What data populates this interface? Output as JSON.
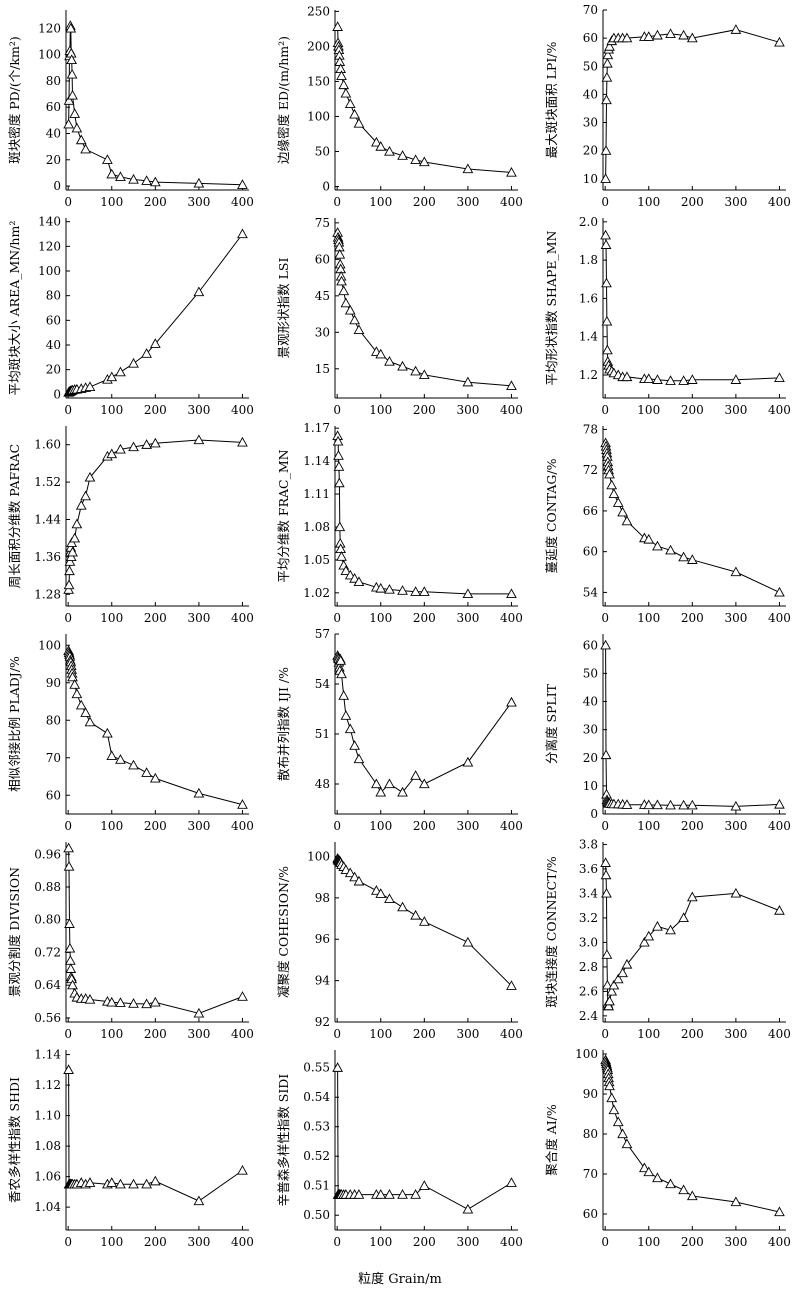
{
  "figure": {
    "xlabel": "粒度 Grain/m"
  },
  "chart_data": [
    {
      "type": "line",
      "ylabel": "斑块密度 PD/(个/km²)",
      "xlim": [
        -5,
        415
      ],
      "ylim": [
        -3,
        134
      ],
      "xticks": [
        0,
        100,
        200,
        300,
        400
      ],
      "yticks": [
        0,
        20,
        40,
        60,
        80,
        100,
        120
      ],
      "x": [
        1,
        2,
        3,
        4,
        5,
        6,
        7,
        8,
        9,
        10,
        15,
        20,
        30,
        40,
        90,
        100,
        120,
        150,
        180,
        200,
        300,
        400
      ],
      "y": [
        47,
        65,
        99,
        103,
        122,
        120,
        101,
        96,
        85,
        69,
        55,
        44,
        35,
        28,
        20,
        9,
        7,
        5,
        4,
        3,
        2,
        1
      ]
    },
    {
      "type": "line",
      "ylabel": "边缘密度 ED/(m/hm²)",
      "xlim": [
        -5,
        415
      ],
      "ylim": [
        -5,
        252
      ],
      "xticks": [
        0,
        100,
        200,
        300,
        400
      ],
      "yticks": [
        0,
        50,
        100,
        150,
        200,
        250
      ],
      "x": [
        1,
        2,
        3,
        4,
        5,
        6,
        8,
        10,
        15,
        20,
        30,
        40,
        50,
        90,
        100,
        120,
        150,
        180,
        200,
        300,
        400
      ],
      "y": [
        228,
        205,
        200,
        195,
        187,
        178,
        168,
        158,
        145,
        133,
        118,
        103,
        90,
        63,
        57,
        50,
        44,
        38,
        35,
        25,
        20
      ]
    },
    {
      "type": "line",
      "ylabel": "最大斑块面积 LPI/%",
      "xlim": [
        -5,
        415
      ],
      "ylim": [
        6,
        70
      ],
      "xticks": [
        0,
        100,
        200,
        300,
        400
      ],
      "yticks": [
        10,
        20,
        30,
        40,
        50,
        60,
        70
      ],
      "x": [
        1,
        2,
        3,
        4,
        5,
        6,
        8,
        10,
        15,
        20,
        30,
        40,
        50,
        90,
        100,
        120,
        150,
        180,
        200,
        300,
        400
      ],
      "y": [
        10,
        20,
        38,
        46,
        51,
        54,
        56,
        57,
        59,
        60,
        60,
        60,
        60,
        60.5,
        60.5,
        61,
        61.5,
        61,
        60,
        63,
        58.5
      ]
    },
    {
      "type": "line",
      "ylabel": "平均斑块大小 AREA_MN/hm²",
      "xlim": [
        -5,
        415
      ],
      "ylim": [
        -3,
        143
      ],
      "xticks": [
        0,
        100,
        200,
        300,
        400
      ],
      "yticks": [
        0,
        20,
        40,
        60,
        80,
        100,
        120,
        140
      ],
      "x": [
        1,
        2,
        3,
        4,
        5,
        6,
        8,
        10,
        15,
        20,
        30,
        40,
        50,
        90,
        100,
        120,
        150,
        180,
        200,
        300,
        400
      ],
      "y": [
        1.5,
        1.8,
        2.0,
        2.2,
        2.5,
        2.7,
        3.0,
        3.3,
        3.8,
        4.0,
        4.5,
        5.3,
        6.0,
        12,
        14,
        18,
        25,
        33,
        41,
        83,
        130
      ]
    },
    {
      "type": "line",
      "ylabel": "景观形状指数 LSI",
      "xlim": [
        -5,
        415
      ],
      "ylim": [
        3,
        77
      ],
      "xticks": [
        0,
        100,
        200,
        300,
        400
      ],
      "yticks": [
        15,
        30,
        45,
        60,
        75
      ],
      "x": [
        1,
        2,
        3,
        4,
        5,
        6,
        7,
        8,
        9,
        10,
        15,
        20,
        30,
        40,
        50,
        90,
        100,
        120,
        150,
        180,
        200,
        300,
        400
      ],
      "y": [
        71,
        69,
        68,
        67,
        65,
        62,
        58,
        56,
        53,
        51,
        47,
        42,
        39,
        35,
        31,
        22,
        21,
        18,
        16,
        14,
        12.5,
        9.5,
        8
      ]
    },
    {
      "type": "line",
      "ylabel": "平均形状指数 SHAPE_MN",
      "xlim": [
        -5,
        415
      ],
      "ylim": [
        1.08,
        2.02
      ],
      "xticks": [
        0,
        100,
        200,
        300,
        400
      ],
      "yticks": [
        1.2,
        1.4,
        1.6,
        1.8,
        2.0
      ],
      "x": [
        1,
        2,
        3,
        4,
        5,
        6,
        8,
        10,
        15,
        20,
        30,
        40,
        50,
        90,
        100,
        120,
        150,
        180,
        200,
        300,
        400
      ],
      "y": [
        1.93,
        1.88,
        1.68,
        1.48,
        1.33,
        1.27,
        1.25,
        1.23,
        1.22,
        1.21,
        1.2,
        1.19,
        1.19,
        1.18,
        1.18,
        1.175,
        1.17,
        1.17,
        1.175,
        1.175,
        1.185
      ]
    },
    {
      "type": "line",
      "ylabel": "周长面积分维数 PAFRAC",
      "xlim": [
        -5,
        415
      ],
      "ylim": [
        1.255,
        1.64
      ],
      "xticks": [
        0,
        100,
        200,
        300,
        400
      ],
      "yticks": [
        1.28,
        1.36,
        1.44,
        1.52,
        1.6
      ],
      "x": [
        1,
        2,
        3,
        4,
        5,
        6,
        7,
        8,
        10,
        15,
        20,
        30,
        40,
        50,
        90,
        100,
        120,
        150,
        180,
        200,
        300,
        400
      ],
      "y": [
        1.29,
        1.3,
        1.33,
        1.35,
        1.37,
        1.38,
        1.36,
        1.39,
        1.37,
        1.4,
        1.43,
        1.47,
        1.49,
        1.53,
        1.575,
        1.58,
        1.59,
        1.595,
        1.6,
        1.603,
        1.61,
        1.605
      ]
    },
    {
      "type": "line",
      "ylabel": "平均分维数 FRAC_MN",
      "xlim": [
        -5,
        415
      ],
      "ylim": [
        1.008,
        1.172
      ],
      "xticks": [
        0,
        100,
        200,
        300,
        400
      ],
      "yticks": [
        1.02,
        1.05,
        1.08,
        1.11,
        1.14,
        1.17
      ],
      "x": [
        1,
        2,
        3,
        4,
        5,
        6,
        7,
        8,
        10,
        15,
        20,
        30,
        40,
        50,
        90,
        100,
        120,
        150,
        180,
        200,
        300,
        400
      ],
      "y": [
        1.163,
        1.158,
        1.145,
        1.135,
        1.12,
        1.08,
        1.065,
        1.06,
        1.053,
        1.045,
        1.04,
        1.036,
        1.033,
        1.03,
        1.025,
        1.024,
        1.023,
        1.022,
        1.021,
        1.021,
        1.019,
        1.019
      ]
    },
    {
      "type": "line",
      "ylabel": "蔓延度 CONTAG/%",
      "xlim": [
        -5,
        415
      ],
      "ylim": [
        52,
        78.5
      ],
      "xticks": [
        0,
        100,
        200,
        300,
        400
      ],
      "yticks": [
        54,
        60,
        66,
        72,
        78
      ],
      "x": [
        1,
        2,
        3,
        4,
        5,
        6,
        7,
        8,
        10,
        15,
        20,
        30,
        40,
        50,
        90,
        100,
        120,
        150,
        180,
        200,
        300,
        400
      ],
      "y": [
        76,
        75.5,
        75,
        74.5,
        74,
        73.2,
        72.6,
        72,
        71.4,
        69.8,
        68.5,
        67.2,
        65.8,
        64.5,
        62,
        61.8,
        60.8,
        60.2,
        59.2,
        58.8,
        57,
        54
      ]
    },
    {
      "type": "line",
      "ylabel": "相似邻接比例 PLADJ/%",
      "xlim": [
        -5,
        415
      ],
      "ylim": [
        55,
        103
      ],
      "xticks": [
        0,
        100,
        200,
        300,
        400
      ],
      "yticks": [
        60,
        70,
        80,
        90,
        100
      ],
      "x": [
        1,
        2,
        3,
        4,
        5,
        6,
        7,
        8,
        9,
        10,
        15,
        20,
        30,
        40,
        50,
        90,
        100,
        120,
        150,
        180,
        200,
        300,
        400
      ],
      "y": [
        98.5,
        98,
        97.5,
        97,
        96,
        95.5,
        94.5,
        93.5,
        92.5,
        91.5,
        89.5,
        87,
        84,
        82,
        79.5,
        76.5,
        70.5,
        69.5,
        68,
        66,
        64.5,
        60.5,
        57.5
      ]
    },
    {
      "type": "line",
      "ylabel": "散布并列指数 IJI /%",
      "xlim": [
        -5,
        415
      ],
      "ylim": [
        46.2,
        57
      ],
      "xticks": [
        0,
        100,
        200,
        300,
        400
      ],
      "yticks": [
        48,
        51,
        54,
        57
      ],
      "x": [
        1,
        2,
        3,
        4,
        5,
        6,
        7,
        8,
        10,
        15,
        20,
        30,
        40,
        50,
        90,
        100,
        120,
        150,
        180,
        200,
        300,
        400
      ],
      "y": [
        55.7,
        55.6,
        55.5,
        55.3,
        55.0,
        54.8,
        55.5,
        55.4,
        54.6,
        53.3,
        52.1,
        51.3,
        50.3,
        49.5,
        48.0,
        47.5,
        48.0,
        47.5,
        48.5,
        48.0,
        49.3,
        52.9
      ]
    },
    {
      "type": "line",
      "ylabel": "分离度 SPLIT",
      "xlim": [
        -5,
        415
      ],
      "ylim": [
        0,
        64
      ],
      "xticks": [
        0,
        100,
        200,
        300,
        400
      ],
      "yticks": [
        0,
        10,
        20,
        30,
        40,
        50,
        60
      ],
      "x": [
        1,
        2,
        3,
        4,
        5,
        6,
        8,
        10,
        15,
        20,
        30,
        40,
        50,
        90,
        100,
        120,
        150,
        180,
        200,
        300,
        400
      ],
      "y": [
        60,
        21,
        7,
        5,
        4.5,
        4,
        3.8,
        3.7,
        3.6,
        3.5,
        3.5,
        3.4,
        3.3,
        3.3,
        3.2,
        3.2,
        3.1,
        3.1,
        3.1,
        2.7,
        3.4
      ]
    },
    {
      "type": "line",
      "ylabel": "景观分割度 DIVISION",
      "xlim": [
        -5,
        415
      ],
      "ylim": [
        0.55,
        0.99
      ],
      "xticks": [
        0,
        100,
        200,
        300,
        400
      ],
      "yticks": [
        0.56,
        0.64,
        0.72,
        0.8,
        0.88,
        0.96
      ],
      "x": [
        1,
        2,
        3,
        4,
        5,
        6,
        7,
        8,
        10,
        15,
        20,
        30,
        40,
        50,
        90,
        100,
        120,
        150,
        180,
        200,
        300,
        400
      ],
      "y": [
        0.975,
        0.93,
        0.79,
        0.73,
        0.7,
        0.68,
        0.66,
        0.655,
        0.64,
        0.62,
        0.61,
        0.607,
        0.607,
        0.605,
        0.6,
        0.598,
        0.597,
        0.595,
        0.594,
        0.598,
        0.571,
        0.612
      ]
    },
    {
      "type": "line",
      "ylabel": "凝聚度 COHESION/%",
      "xlim": [
        -5,
        415
      ],
      "ylim": [
        92,
        100.7
      ],
      "xticks": [
        0,
        100,
        200,
        300,
        400
      ],
      "yticks": [
        92,
        94,
        96,
        98,
        100
      ],
      "x": [
        1,
        2,
        3,
        4,
        5,
        6,
        7,
        8,
        10,
        15,
        20,
        30,
        40,
        50,
        90,
        100,
        120,
        150,
        180,
        200,
        300,
        400
      ],
      "y": [
        99.9,
        99.85,
        99.8,
        99.8,
        99.8,
        99.75,
        99.75,
        99.7,
        99.6,
        99.5,
        99.35,
        99.2,
        99.0,
        98.8,
        98.35,
        98.2,
        97.95,
        97.55,
        97.15,
        96.85,
        95.85,
        93.75
      ]
    },
    {
      "type": "line",
      "ylabel": "斑块连接度 CONNECT/%",
      "xlim": [
        -5,
        415
      ],
      "ylim": [
        2.35,
        3.82
      ],
      "xticks": [
        0,
        100,
        200,
        300,
        400
      ],
      "yticks": [
        2.4,
        2.6,
        2.8,
        3.0,
        3.2,
        3.4,
        3.6,
        3.8
      ],
      "x": [
        1,
        2,
        3,
        4,
        5,
        6,
        7,
        8,
        10,
        15,
        20,
        30,
        40,
        50,
        90,
        100,
        120,
        150,
        180,
        200,
        300,
        400
      ],
      "y": [
        3.65,
        3.55,
        3.4,
        2.9,
        2.65,
        2.5,
        2.48,
        2.48,
        2.52,
        2.6,
        2.65,
        2.7,
        2.75,
        2.82,
        3.0,
        3.05,
        3.13,
        3.1,
        3.2,
        3.37,
        3.4,
        3.26
      ]
    },
    {
      "type": "line",
      "ylabel": "香农多样性指数 SHDI",
      "xlim": [
        -5,
        415
      ],
      "ylim": [
        1.025,
        1.143
      ],
      "xticks": [
        0,
        100,
        200,
        300,
        400
      ],
      "yticks": [
        1.04,
        1.06,
        1.08,
        1.1,
        1.12,
        1.14
      ],
      "x": [
        1,
        2,
        3,
        4,
        5,
        6,
        8,
        10,
        15,
        20,
        30,
        40,
        50,
        90,
        100,
        120,
        150,
        180,
        200,
        300,
        400
      ],
      "y": [
        1.13,
        1.055,
        1.055,
        1.055,
        1.055,
        1.055,
        1.055,
        1.055,
        1.055,
        1.055,
        1.056,
        1.055,
        1.056,
        1.055,
        1.056,
        1.055,
        1.055,
        1.055,
        1.057,
        1.044,
        1.064
      ]
    },
    {
      "type": "line",
      "ylabel": "辛普森多样性指数 SIDI",
      "xlim": [
        -5,
        415
      ],
      "ylim": [
        0.495,
        0.556
      ],
      "xticks": [
        0,
        100,
        200,
        300,
        400
      ],
      "yticks": [
        0.5,
        0.51,
        0.52,
        0.53,
        0.54,
        0.55
      ],
      "x": [
        1,
        2,
        3,
        4,
        5,
        6,
        8,
        10,
        15,
        20,
        30,
        40,
        50,
        90,
        100,
        120,
        150,
        180,
        200,
        300,
        400
      ],
      "y": [
        0.55,
        0.507,
        0.507,
        0.507,
        0.507,
        0.507,
        0.507,
        0.507,
        0.507,
        0.507,
        0.507,
        0.507,
        0.507,
        0.507,
        0.507,
        0.507,
        0.507,
        0.507,
        0.51,
        0.502,
        0.511
      ]
    },
    {
      "type": "line",
      "ylabel": "聚合度 AI/%",
      "xlim": [
        -5,
        415
      ],
      "ylim": [
        56,
        101
      ],
      "xticks": [
        0,
        100,
        200,
        300,
        400
      ],
      "yticks": [
        60,
        70,
        80,
        90,
        100
      ],
      "x": [
        1,
        2,
        3,
        4,
        5,
        6,
        7,
        8,
        9,
        10,
        15,
        20,
        30,
        40,
        50,
        90,
        100,
        120,
        150,
        180,
        200,
        300,
        400
      ],
      "y": [
        98.5,
        98,
        97.5,
        97,
        96.5,
        96,
        95,
        94,
        93,
        92,
        89,
        86,
        83,
        80,
        77.5,
        71.5,
        70.5,
        69,
        67.5,
        66,
        64.5,
        63,
        60.5
      ]
    }
  ]
}
